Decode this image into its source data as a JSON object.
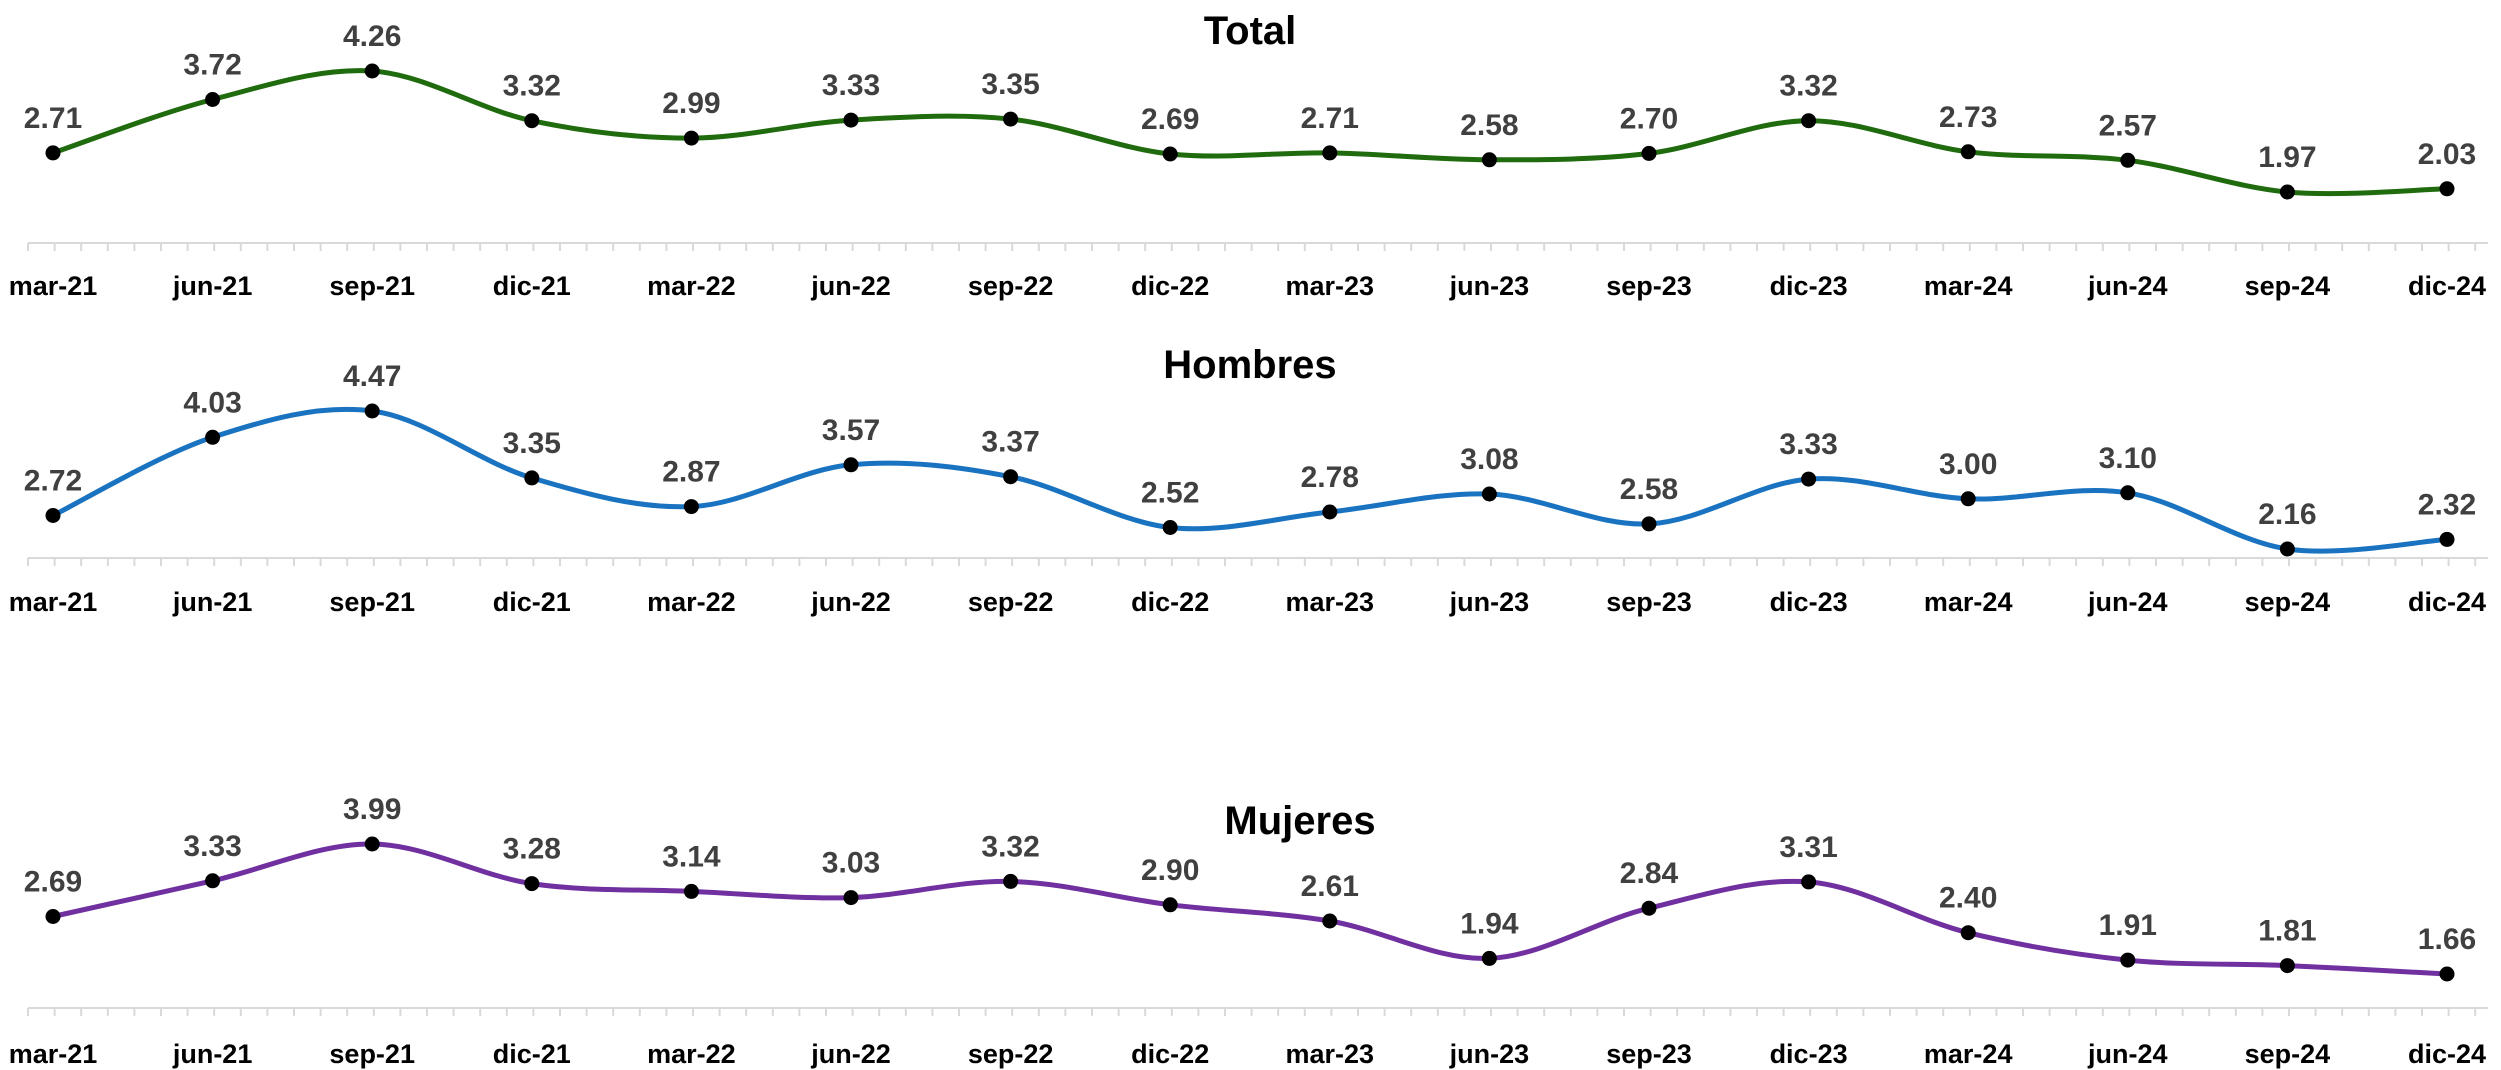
{
  "chart_data": [
    {
      "type": "line",
      "title": "Total",
      "color": "#1f6b0e",
      "categories": [
        "mar-21",
        "jun-21",
        "sep-21",
        "dic-21",
        "mar-22",
        "jun-22",
        "sep-22",
        "dic-22",
        "mar-23",
        "jun-23",
        "sep-23",
        "dic-23",
        "mar-24",
        "jun-24",
        "sep-24",
        "dic-24"
      ],
      "values": [
        2.71,
        3.72,
        4.26,
        3.32,
        2.99,
        3.33,
        3.35,
        2.69,
        2.71,
        2.58,
        2.7,
        3.32,
        2.73,
        2.57,
        1.97,
        2.03
      ],
      "labels": [
        "2.71",
        "3.72",
        "4.26",
        "3.32",
        "2.99",
        "3.33",
        "3.35",
        "2.69",
        "2.71",
        "2.58",
        "2.70",
        "3.32",
        "2.73",
        "2.57",
        "1.97",
        "2.03"
      ],
      "xlabel": "",
      "ylabel": "",
      "grid": false,
      "smooth": true
    },
    {
      "type": "line",
      "title": "Hombres",
      "color": "#1a73c0",
      "categories": [
        "mar-21",
        "jun-21",
        "sep-21",
        "dic-21",
        "mar-22",
        "jun-22",
        "sep-22",
        "dic-22",
        "mar-23",
        "jun-23",
        "sep-23",
        "dic-23",
        "mar-24",
        "jun-24",
        "sep-24",
        "dic-24"
      ],
      "values": [
        2.72,
        4.03,
        4.47,
        3.35,
        2.87,
        3.57,
        3.37,
        2.52,
        2.78,
        3.08,
        2.58,
        3.33,
        3.0,
        3.1,
        2.16,
        2.32
      ],
      "labels": [
        "2.72",
        "4.03",
        "4.47",
        "3.35",
        "2.87",
        "3.57",
        "3.37",
        "2.52",
        "2.78",
        "3.08",
        "2.58",
        "3.33",
        "3.00",
        "3.10",
        "2.16",
        "2.32"
      ],
      "xlabel": "",
      "ylabel": "",
      "grid": false,
      "smooth": true
    },
    {
      "type": "line",
      "title": "Mujeres",
      "color": "#7030a0",
      "categories": [
        "mar-21",
        "jun-21",
        "sep-21",
        "dic-21",
        "mar-22",
        "jun-22",
        "sep-22",
        "dic-22",
        "mar-23",
        "jun-23",
        "sep-23",
        "dic-23",
        "mar-24",
        "jun-24",
        "sep-24",
        "dic-24"
      ],
      "values": [
        2.69,
        3.33,
        3.99,
        3.28,
        3.14,
        3.03,
        3.32,
        2.9,
        2.61,
        1.94,
        2.84,
        3.31,
        2.4,
        1.91,
        1.81,
        1.66
      ],
      "labels": [
        "2.69",
        "3.33",
        "3.99",
        "3.28",
        "3.14",
        "3.03",
        "3.32",
        "2.90",
        "2.61",
        "1.94",
        "2.84",
        "3.31",
        "2.40",
        "1.91",
        "1.81",
        "1.66"
      ],
      "xlabel": "",
      "ylabel": "",
      "grid": false,
      "smooth": true
    }
  ]
}
